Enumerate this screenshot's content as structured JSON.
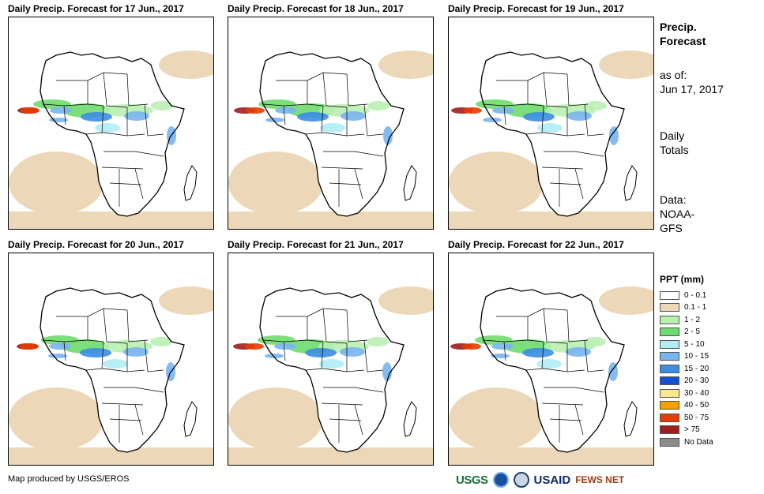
{
  "panels": [
    {
      "title": "Daily Precip. Forecast for 17 Jun., 2017",
      "day": 17
    },
    {
      "title": "Daily Precip. Forecast for 18 Jun., 2017",
      "day": 18
    },
    {
      "title": "Daily Precip. Forecast for 19 Jun., 2017",
      "day": 19
    },
    {
      "title": "Daily Precip. Forecast for 20 Jun., 2017",
      "day": 20
    },
    {
      "title": "Daily Precip. Forecast for 21 Jun., 2017",
      "day": 21
    },
    {
      "title": "Daily Precip. Forecast for 22 Jun., 2017",
      "day": 22
    }
  ],
  "sidebar": {
    "heading_line1": "Precip.",
    "heading_line2": "Forecast",
    "asof_line1": "as of:",
    "asof_line2": "Jun 17, 2017",
    "totals_line1": "Daily",
    "totals_line2": "Totals",
    "data_line1": "Data:",
    "data_line2": "NOAA-",
    "data_line3": "GFS"
  },
  "legend": {
    "title": "PPT (mm)",
    "items": [
      {
        "label": "0 - 0.1",
        "color": "#ffffff"
      },
      {
        "label": "0.1 - 1",
        "color": "#ecd8b8"
      },
      {
        "label": "1 - 2",
        "color": "#b8f0b0"
      },
      {
        "label": "2 - 5",
        "color": "#6edc6e"
      },
      {
        "label": "5 - 10",
        "color": "#b0ecf4"
      },
      {
        "label": "10 - 15",
        "color": "#78b4f0"
      },
      {
        "label": "15 - 20",
        "color": "#3c8ce6"
      },
      {
        "label": "20 - 30",
        "color": "#1450d2"
      },
      {
        "label": "30 - 40",
        "color": "#fae68c"
      },
      {
        "label": "40 - 50",
        "color": "#f5a000"
      },
      {
        "label": "50 - 75",
        "color": "#e63c00"
      },
      {
        "label": "> 75",
        "color": "#a01e1e"
      },
      {
        "label": "No Data",
        "color": "#8c8c8c"
      }
    ]
  },
  "footer": {
    "credit": "Map produced by USGS/EROS",
    "logos": {
      "usgs": "USGS",
      "usaid": "USAID",
      "fews": "FEWS NET"
    }
  }
}
